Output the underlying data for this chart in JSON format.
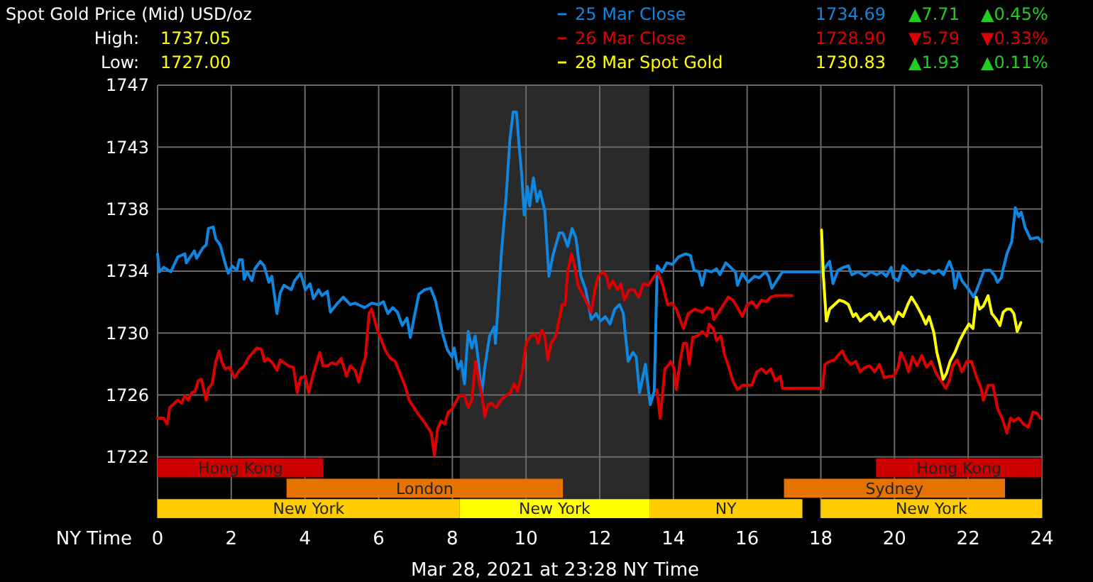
{
  "chart_data": {
    "type": "line",
    "title": "Spot Gold Price (Mid) USD/oz",
    "xlabel": "NY Time",
    "xlim": [
      0,
      24
    ],
    "xticks": [
      0,
      2,
      4,
      6,
      8,
      10,
      12,
      14,
      16,
      18,
      20,
      22,
      24
    ],
    "ylim": [
      1717.7,
      1746.7
    ],
    "yticks": [
      {
        "value": 1721.8,
        "label": "1722"
      },
      {
        "value": 1725.95,
        "label": "1726"
      },
      {
        "value": 1730.1,
        "label": "1730"
      },
      {
        "value": 1734.25,
        "label": "1734"
      },
      {
        "value": 1738.4,
        "label": "1738"
      },
      {
        "value": 1742.55,
        "label": "1743"
      },
      {
        "value": 1746.7,
        "label": "1747"
      }
    ],
    "grid": true,
    "legend": "top right",
    "series": [
      {
        "name": "25 Mar Close",
        "color": "#0f86e0",
        "x": [
          0,
          0.05,
          0.17,
          0.36,
          0.55,
          0.74,
          0.78,
          1.0,
          1.06,
          1.23,
          1.32,
          1.38,
          1.51,
          1.58,
          1.7,
          1.83,
          1.92,
          2.02,
          2.15,
          2.22,
          2.3,
          2.35,
          2.43,
          2.56,
          2.64,
          2.79,
          2.89,
          3.02,
          3.1,
          3.24,
          3.33,
          3.43,
          3.63,
          3.72,
          3.88,
          3.93,
          4.01,
          4.14,
          4.23,
          4.37,
          4.46,
          4.61,
          4.69,
          4.85,
          5.04,
          5.23,
          5.36,
          5.62,
          5.81,
          6.0,
          6.13,
          6.25,
          6.38,
          6.51,
          6.64,
          6.77,
          6.86,
          6.96,
          7.09,
          7.25,
          7.41,
          7.54,
          7.73,
          7.86,
          7.99,
          8.05,
          8.15,
          8.24,
          8.33,
          8.43,
          8.53,
          8.62,
          8.71,
          8.79,
          8.88,
          9.01,
          9.14,
          9.17,
          9.23,
          9.33,
          9.46,
          9.56,
          9.65,
          9.74,
          9.81,
          9.88,
          9.95,
          10.04,
          10.1,
          10.2,
          10.3,
          10.38,
          10.51,
          10.62,
          10.72,
          10.9,
          11.0,
          11.13,
          11.25,
          11.35,
          11.49,
          11.62,
          11.77,
          11.9,
          12.02,
          12.15,
          12.28,
          12.41,
          12.54,
          12.64,
          12.77,
          12.9,
          12.99,
          13.08,
          13.15,
          13.24,
          13.37,
          13.48,
          13.56,
          13.69,
          13.82,
          13.97,
          14.14,
          14.33,
          14.46,
          14.56,
          14.69,
          14.78,
          14.87,
          15.03,
          15.17,
          15.26,
          15.42,
          15.55,
          15.68,
          15.74,
          15.87,
          16.03,
          16.2,
          16.33,
          16.5,
          16.58,
          16.67,
          16.8,
          16.96,
          18.05,
          18.15,
          18.24,
          18.33,
          18.46,
          18.62,
          18.75,
          18.84,
          19.01,
          19.2,
          19.36,
          19.52,
          19.65,
          19.78,
          19.91,
          19.97,
          20.1,
          20.23,
          20.36,
          20.49,
          20.62,
          20.81,
          20.94,
          21.07,
          21.2,
          21.33,
          21.49,
          21.58,
          21.64,
          21.74,
          21.83,
          21.99,
          22.15,
          22.28,
          22.43,
          22.6,
          22.73,
          22.79,
          22.9,
          22.95,
          23.05,
          23.18,
          23.28,
          23.37,
          23.44,
          23.54,
          23.69,
          23.89,
          24
        ],
        "values": [
          1735.4,
          1734.2,
          1734.5,
          1734.2,
          1735.2,
          1735.4,
          1734.8,
          1735.6,
          1735.1,
          1735.8,
          1736.0,
          1737.1,
          1737.2,
          1736.4,
          1736.0,
          1734.8,
          1734.1,
          1734.6,
          1734.3,
          1735.0,
          1735.0,
          1733.7,
          1734.2,
          1733.6,
          1734.4,
          1734.9,
          1734.6,
          1733.5,
          1733.9,
          1731.4,
          1732.8,
          1733.3,
          1733.0,
          1733.6,
          1734.1,
          1733.7,
          1733.0,
          1733.4,
          1732.4,
          1733.0,
          1732.6,
          1732.9,
          1731.5,
          1732.0,
          1732.5,
          1732.0,
          1732.1,
          1731.8,
          1732.1,
          1732.0,
          1732.2,
          1731.4,
          1731.8,
          1731.5,
          1730.6,
          1731.1,
          1729.8,
          1731.1,
          1732.7,
          1733.0,
          1733.1,
          1732.3,
          1730.1,
          1729.0,
          1728.5,
          1729.1,
          1727.7,
          1728.2,
          1726.7,
          1730.2,
          1729.1,
          1729.9,
          1728.2,
          1725.9,
          1727.8,
          1729.9,
          1730.5,
          1729.4,
          1731.5,
          1735.4,
          1739.2,
          1743.0,
          1744.9,
          1744.9,
          1742.7,
          1740.8,
          1738.0,
          1739.9,
          1738.6,
          1740.5,
          1738.9,
          1739.6,
          1738.3,
          1733.9,
          1735.2,
          1736.8,
          1736.8,
          1735.9,
          1737.1,
          1736.5,
          1733.9,
          1733.0,
          1731.0,
          1731.4,
          1730.9,
          1731.2,
          1730.7,
          1731.7,
          1732.0,
          1731.4,
          1728.2,
          1728.8,
          1728.5,
          1726.1,
          1726.9,
          1728.0,
          1725.3,
          1726.2,
          1734.6,
          1734.2,
          1734.8,
          1734.7,
          1735.2,
          1735.4,
          1735.3,
          1734.3,
          1734.2,
          1733.3,
          1734.3,
          1734.2,
          1734.4,
          1734.0,
          1734.8,
          1734.5,
          1734.2,
          1733.3,
          1734.1,
          1733.5,
          1733.9,
          1733.8,
          1734.2,
          1733.9,
          1733.1,
          1733.6,
          1734.2,
          1734.2,
          1734.6,
          1734.9,
          1733.4,
          1734.3,
          1734.5,
          1734.6,
          1734.0,
          1734.2,
          1733.9,
          1734.2,
          1734.0,
          1734.2,
          1733.9,
          1734.5,
          1733.8,
          1733.6,
          1734.6,
          1734.3,
          1733.9,
          1734.3,
          1734.1,
          1734.3,
          1734.1,
          1734.3,
          1734.0,
          1734.9,
          1734.3,
          1733.1,
          1734.2,
          1733.6,
          1733.1,
          1732.5,
          1733.3,
          1734.3,
          1734.3,
          1733.9,
          1733.5,
          1733.8,
          1734.4,
          1735.4,
          1736.2,
          1738.5,
          1737.9,
          1738.2,
          1737.2,
          1736.4,
          1736.5,
          1736.2
        ]
      },
      {
        "name": "26 Mar Close",
        "color": "#dd0000",
        "x": [
          0,
          0.16,
          0.26,
          0.33,
          0.46,
          0.55,
          0.65,
          0.74,
          0.83,
          0.93,
          1.02,
          1.1,
          1.19,
          1.25,
          1.32,
          1.38,
          1.48,
          1.58,
          1.67,
          1.74,
          1.83,
          1.96,
          2.09,
          2.22,
          2.35,
          2.48,
          2.56,
          2.69,
          2.82,
          2.9,
          2.99,
          3.12,
          3.24,
          3.33,
          3.43,
          3.56,
          3.69,
          3.79,
          3.88,
          4.01,
          4.1,
          4.23,
          4.4,
          4.49,
          4.61,
          4.72,
          4.85,
          4.98,
          5.04,
          5.13,
          5.23,
          5.36,
          5.46,
          5.55,
          5.64,
          5.74,
          5.81,
          5.94,
          6.06,
          6.19,
          6.32,
          6.45,
          6.58,
          6.71,
          6.83,
          6.96,
          7.09,
          7.22,
          7.35,
          7.43,
          7.51,
          7.6,
          7.69,
          7.79,
          7.89,
          7.99,
          8.08,
          8.18,
          8.33,
          8.43,
          8.53,
          8.63,
          8.72,
          8.79,
          8.88,
          8.97,
          9.06,
          9.19,
          9.32,
          9.45,
          9.58,
          9.68,
          9.77,
          9.9,
          10.0,
          10.13,
          10.26,
          10.33,
          10.42,
          10.51,
          10.59,
          10.68,
          10.81,
          10.9,
          10.98,
          11.06,
          11.13,
          11.23,
          11.32,
          11.41,
          11.51,
          11.64,
          11.77,
          11.87,
          11.96,
          12.09,
          12.18,
          12.26,
          12.35,
          12.48,
          12.57,
          12.67,
          12.8,
          12.93,
          13.06,
          13.19,
          13.32,
          13.45,
          13.58,
          13.71,
          13.84,
          13.95,
          14.08,
          14.27,
          14.4,
          14.59,
          14.78,
          14.91,
          15.04,
          15.1,
          15.23,
          15.36,
          15.49,
          15.62,
          15.74,
          15.87,
          16.0,
          16.13,
          16.26,
          16.39,
          16.52,
          16.64,
          16.77,
          16.97,
          17.22
        ],
        "values": [
          1724.4,
          1724.4,
          1724.0,
          1725.1,
          1725.4,
          1725.6,
          1725.4,
          1725.9,
          1725.6,
          1726.1,
          1726.2,
          1726.9,
          1727.0,
          1726.3,
          1725.6,
          1726.4,
          1726.7,
          1728.2,
          1728.9,
          1728.2,
          1727.7,
          1727.8,
          1727.1,
          1727.6,
          1727.9,
          1728.5,
          1728.7,
          1729.1,
          1729.0,
          1728.2,
          1728.4,
          1728.1,
          1727.6,
          1728.3,
          1728.1,
          1727.9,
          1727.8,
          1726.1,
          1727.1,
          1727.2,
          1726.1,
          1727.4,
          1728.8,
          1727.9,
          1727.9,
          1728.1,
          1728.0,
          1728.4,
          1727.9,
          1727.2,
          1727.9,
          1727.6,
          1726.8,
          1727.8,
          1728.5,
          1731.4,
          1731.7,
          1730.5,
          1729.7,
          1728.9,
          1728.4,
          1728.2,
          1727.4,
          1726.6,
          1725.6,
          1725.1,
          1724.6,
          1724.2,
          1723.7,
          1723.4,
          1721.9,
          1723.7,
          1724.2,
          1724.0,
          1724.8,
          1725.0,
          1725.4,
          1725.9,
          1725.9,
          1725.1,
          1725.6,
          1728.2,
          1726.9,
          1726.1,
          1724.5,
          1725.3,
          1725.4,
          1725.1,
          1725.6,
          1725.9,
          1726.1,
          1726.7,
          1726.2,
          1727.5,
          1729.4,
          1729.9,
          1730.0,
          1729.4,
          1730.3,
          1729.9,
          1728.3,
          1729.4,
          1729.9,
          1731.0,
          1732.0,
          1732.0,
          1734.2,
          1735.4,
          1734.6,
          1733.3,
          1732.8,
          1732.2,
          1731.5,
          1733.0,
          1733.9,
          1734.2,
          1733.9,
          1733.1,
          1733.6,
          1733.0,
          1733.4,
          1732.3,
          1733.0,
          1733.0,
          1732.5,
          1733.4,
          1733.3,
          1733.8,
          1734.2,
          1733.3,
          1732.0,
          1732.1,
          1731.7,
          1730.4,
          1731.4,
          1731.7,
          1731.5,
          1731.8,
          1731.7,
          1731.0,
          1731.5,
          1732.0,
          1732.5,
          1732.3,
          1731.8,
          1731.2,
          1732.0,
          1732.2,
          1731.8,
          1732.3,
          1732.2,
          1732.5,
          1732.6,
          1732.6,
          1732.6
        ]
      },
      {
        "color": "#dd0000",
        "x": [
          13.55,
          13.64,
          13.77,
          13.88,
          13.92,
          14.01,
          14.08,
          14.18,
          14.27,
          14.36,
          14.43,
          14.52,
          14.65,
          14.78,
          14.91,
          14.97,
          15.08,
          15.17,
          15.29,
          15.38,
          15.49,
          15.61,
          15.74,
          15.87,
          16.0,
          16.13,
          16.26,
          16.39,
          16.51,
          16.64,
          16.77,
          16.9,
          16.96,
          18.05,
          18.11,
          18.24,
          18.37,
          18.5,
          18.59,
          18.69,
          18.82,
          18.95,
          19.07,
          19.2,
          19.33,
          19.46,
          19.59,
          19.72,
          19.85,
          19.97,
          20.1,
          20.17,
          20.29,
          20.38,
          20.49,
          20.61,
          20.74,
          20.87,
          21.0,
          21.13,
          21.26,
          21.39,
          21.49,
          21.58,
          21.7,
          21.83,
          21.96,
          22.09,
          22.22,
          22.35,
          22.41,
          22.54,
          22.67,
          22.8,
          22.92,
          23.05,
          23.15,
          23.24,
          23.37,
          23.5,
          23.63,
          23.76,
          23.88,
          23.95
        ],
        "values": [
          1726.3,
          1724.4,
          1727.7,
          1728.0,
          1728.2,
          1727.8,
          1726.3,
          1728.2,
          1729.4,
          1729.4,
          1728.0,
          1729.8,
          1729.9,
          1730.2,
          1729.9,
          1730.7,
          1730.4,
          1729.6,
          1729.9,
          1728.7,
          1727.9,
          1726.9,
          1726.3,
          1726.6,
          1726.6,
          1726.6,
          1727.5,
          1727.7,
          1727.4,
          1727.7,
          1726.9,
          1727.2,
          1726.4,
          1726.4,
          1728.0,
          1728.2,
          1728.3,
          1728.7,
          1728.9,
          1728.3,
          1728.0,
          1728.2,
          1727.5,
          1727.8,
          1727.9,
          1727.5,
          1728.0,
          1727.1,
          1727.2,
          1727.2,
          1727.8,
          1728.8,
          1728.2,
          1727.5,
          1728.5,
          1727.9,
          1728.6,
          1727.8,
          1728.2,
          1727.4,
          1726.9,
          1726.4,
          1726.9,
          1727.9,
          1728.3,
          1727.5,
          1728.2,
          1728.2,
          1727.2,
          1726.4,
          1725.6,
          1726.6,
          1726.6,
          1725.0,
          1724.4,
          1723.4,
          1724.4,
          1724.2,
          1724.4,
          1724.0,
          1723.8,
          1724.8,
          1724.7,
          1724.4
        ]
      },
      {
        "name": "28 Mar Spot Gold",
        "color": "#ffff00",
        "x": [
          18.02,
          18.07,
          18.15,
          18.24,
          18.37,
          18.5,
          18.63,
          18.75,
          18.88,
          18.95,
          19.07,
          19.2,
          19.33,
          19.46,
          19.59,
          19.72,
          19.85,
          19.97,
          20.1,
          20.23,
          20.36,
          20.46,
          20.59,
          20.72,
          20.85,
          20.94,
          21.07,
          21.15,
          21.23,
          21.32,
          21.41,
          21.51,
          21.64,
          21.77,
          21.9,
          22.02,
          22.13,
          22.22,
          22.31,
          22.41,
          22.54,
          22.64,
          22.77,
          22.86,
          22.95,
          23.05,
          23.15,
          23.24,
          23.33,
          23.43
        ],
        "values": [
          1737.0,
          1733.9,
          1730.9,
          1731.7,
          1732.0,
          1732.3,
          1732.2,
          1732.0,
          1731.2,
          1731.4,
          1730.9,
          1731.2,
          1731.4,
          1731.0,
          1731.5,
          1730.9,
          1731.2,
          1730.7,
          1731.5,
          1731.2,
          1732.0,
          1732.5,
          1732.0,
          1731.4,
          1730.7,
          1731.2,
          1730.1,
          1728.8,
          1728.0,
          1727.0,
          1727.4,
          1728.2,
          1728.8,
          1729.6,
          1730.2,
          1730.7,
          1730.4,
          1732.5,
          1731.7,
          1731.9,
          1732.6,
          1731.4,
          1731.0,
          1730.6,
          1731.5,
          1731.7,
          1731.7,
          1731.4,
          1730.2,
          1730.8
        ]
      }
    ],
    "bands": [
      {
        "axis": "x",
        "from": 8.2,
        "to": 13.35,
        "color": "#2a2a2a"
      },
      {
        "axis": "x",
        "from": 0,
        "to": 4.5,
        "label": "Hong Kong",
        "color": "#cc0000"
      },
      {
        "axis": "x",
        "from": 19.5,
        "to": 24,
        "label": "Hong Kong",
        "color": "#cc0000"
      },
      {
        "axis": "x",
        "from": 3.5,
        "to": 11,
        "label": "London",
        "color": "#e67300"
      },
      {
        "axis": "x",
        "from": 17,
        "to": 23,
        "label": "Sydney",
        "color": "#e67300"
      },
      {
        "axis": "x",
        "from": 0,
        "to": 8.2,
        "label": "New York",
        "color": "#ffcc00"
      },
      {
        "axis": "x",
        "from": 8.2,
        "to": 13.35,
        "label": "New York",
        "color": "#ffff00"
      },
      {
        "axis": "x",
        "from": 13.35,
        "to": 17.5,
        "label": "NY",
        "color": "#ffcc00"
      },
      {
        "axis": "x",
        "from": 18,
        "to": 24,
        "label": "New York",
        "color": "#ffcc00"
      }
    ],
    "annotations": [
      "High: 1737.05",
      "Low: 1727.00",
      "1734.69",
      "▲7.71",
      "▲0.45%",
      "1728.90",
      "▼5.79",
      "▼0.33%",
      "1730.83",
      "▲1.93",
      "▲0.11%",
      "Mar 28, 2021 at 23:28 NY Time"
    ]
  }
}
